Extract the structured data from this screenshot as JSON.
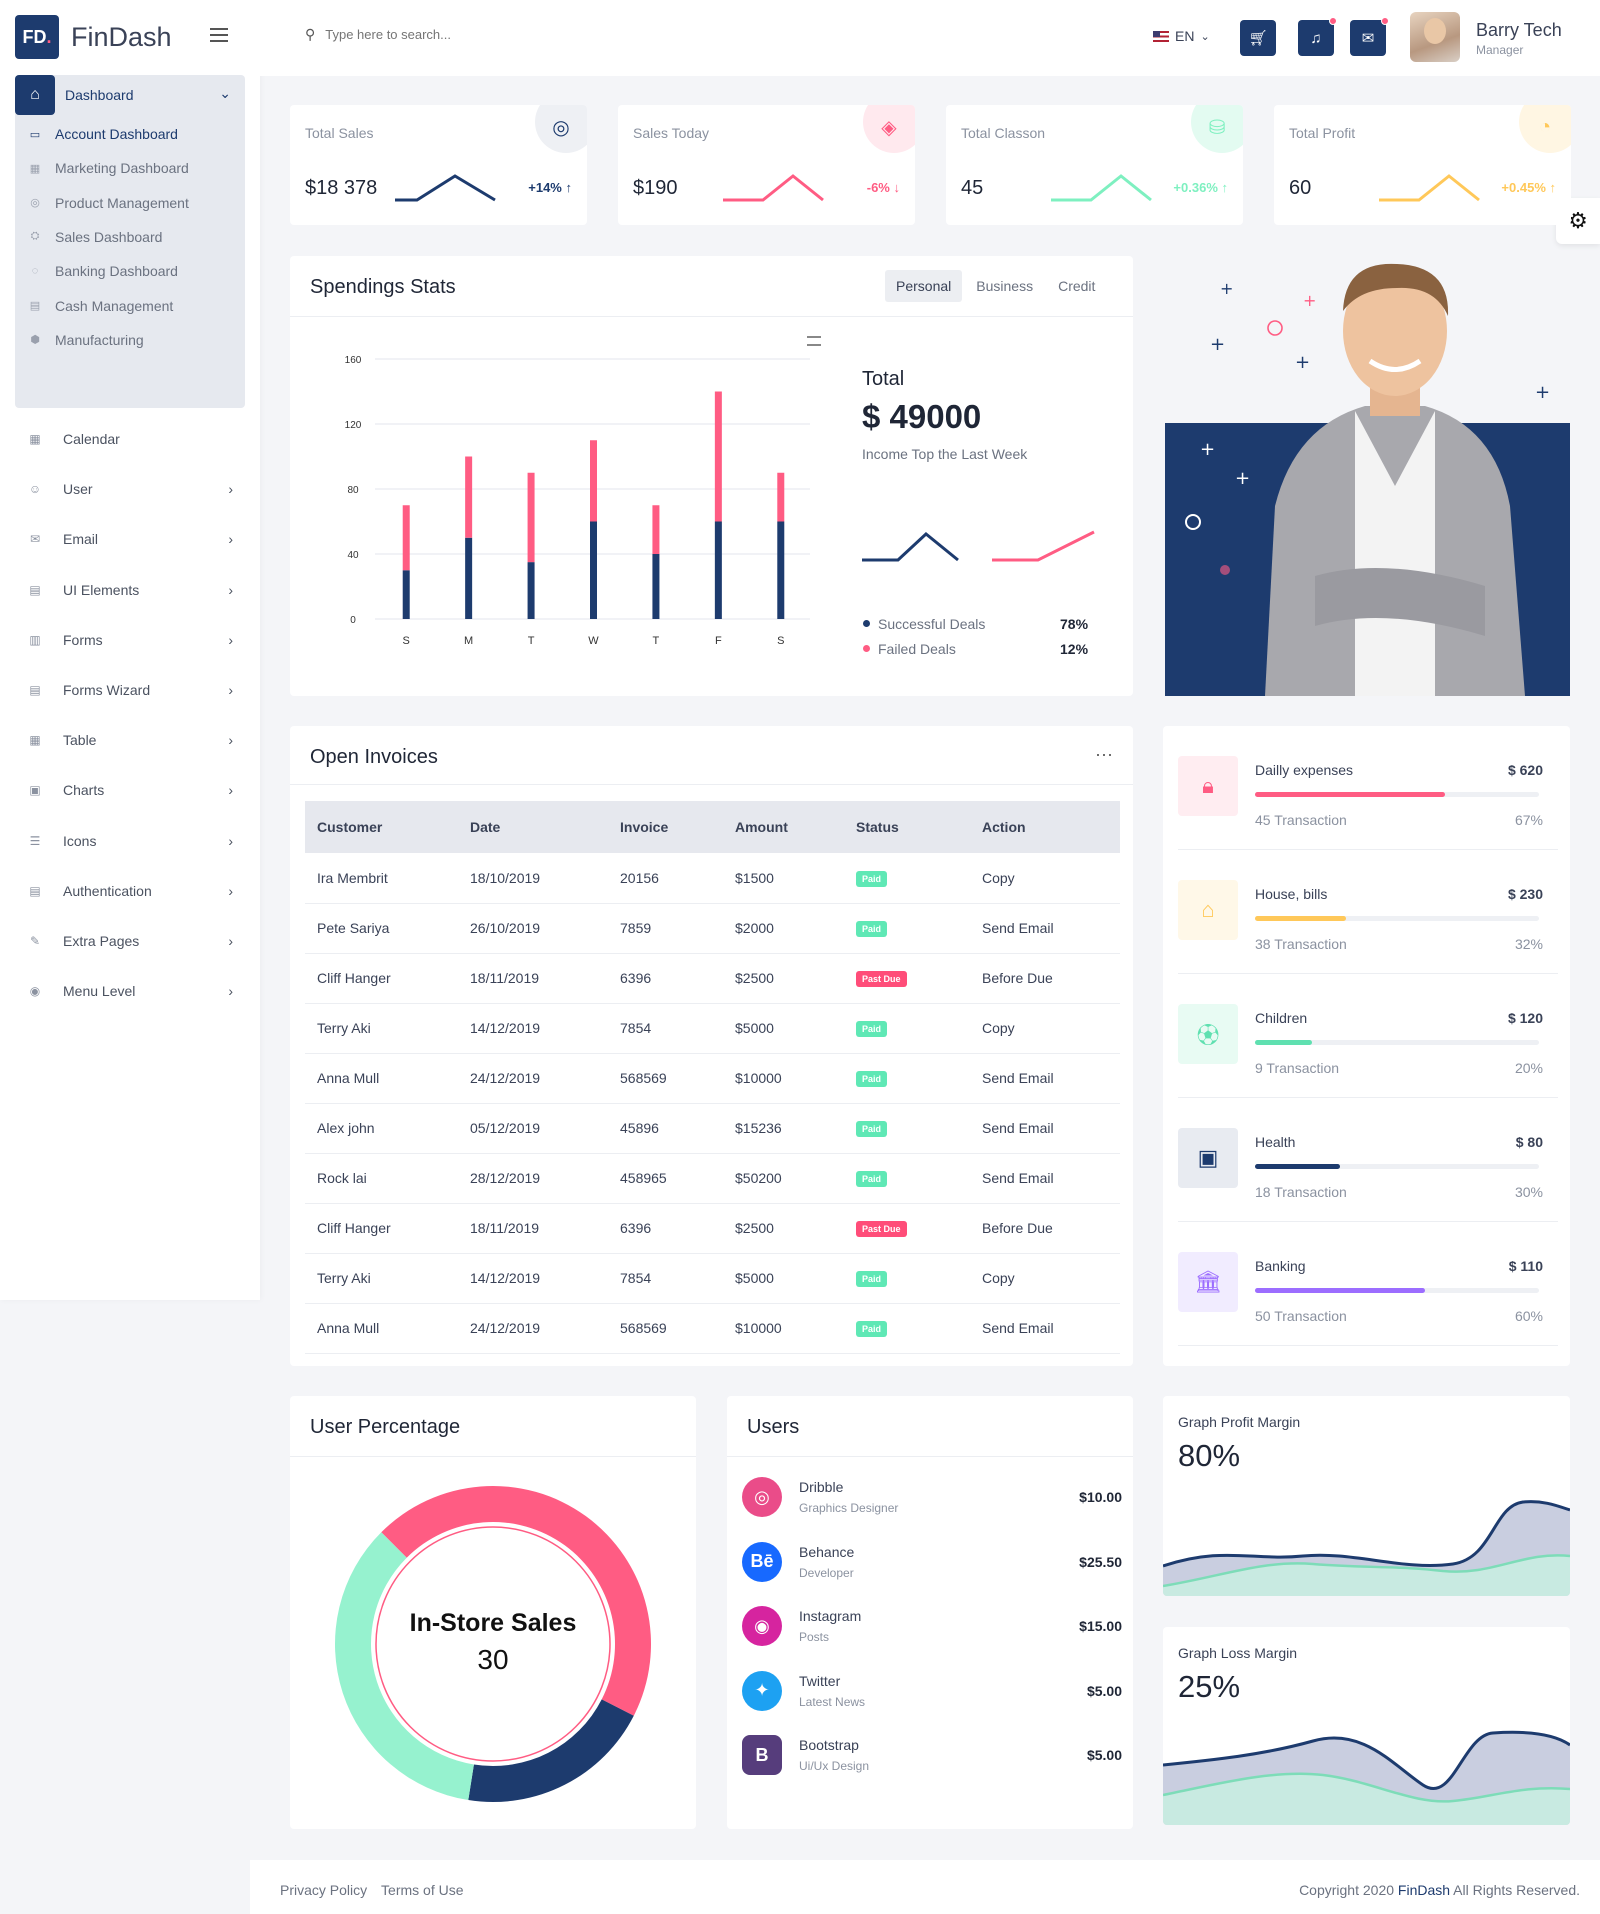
{
  "brand": {
    "logo": "FD",
    "logo_dot": ".",
    "name": "FinDash"
  },
  "sidebar": {
    "dashboard": {
      "label": "Dashboard",
      "icon": "home-icon"
    },
    "sub_items": [
      {
        "label": "Account Dashboard",
        "active": true
      },
      {
        "label": "Marketing Dashboard"
      },
      {
        "label": "Product Management"
      },
      {
        "label": "Sales Dashboard"
      },
      {
        "label": "Banking Dashboard"
      },
      {
        "label": "Cash Management"
      },
      {
        "label": "Manufacturing"
      }
    ],
    "items": [
      {
        "label": "Calendar",
        "chevron": false
      },
      {
        "label": "User",
        "chevron": true
      },
      {
        "label": "Email",
        "chevron": true
      },
      {
        "label": "UI Elements",
        "chevron": true
      },
      {
        "label": "Forms",
        "chevron": true
      },
      {
        "label": "Forms Wizard",
        "chevron": true
      },
      {
        "label": "Table",
        "chevron": true
      },
      {
        "label": "Charts",
        "chevron": true
      },
      {
        "label": "Icons",
        "chevron": true
      },
      {
        "label": "Authentication",
        "chevron": true
      },
      {
        "label": "Extra Pages",
        "chevron": true
      },
      {
        "label": "Menu Level",
        "chevron": true
      }
    ]
  },
  "header": {
    "search_placeholder": "Type here to search...",
    "lang": "EN",
    "user_name": "Barry Tech",
    "user_role": "Manager"
  },
  "stats": [
    {
      "title": "Total Sales",
      "value": "$18 378",
      "change": "+14%",
      "color": "#1d3b6e",
      "icon": "target-icon",
      "bubble": "#eef0f4"
    },
    {
      "title": "Sales Today",
      "value": "$190",
      "change": "-6%",
      "color": "#ff5c83",
      "icon": "tag-icon",
      "bubble": "#ffe9ee"
    },
    {
      "title": "Total Classon",
      "value": "45",
      "change": "+0.36%",
      "color": "#7ef0c0",
      "icon": "database-icon",
      "bubble": "#e3fbf1"
    },
    {
      "title": "Total Profit",
      "value": "60",
      "change": "+0.45%",
      "color": "#ffc859",
      "icon": "pie-icon",
      "bubble": "#fff6e3"
    }
  ],
  "spending": {
    "title": "Spendings Stats",
    "tabs": [
      "Personal",
      "Business",
      "Credit"
    ],
    "total_label": "Total",
    "total_value": "$ 49000",
    "total_sub": "Income Top the Last Week",
    "legend": [
      {
        "label": "Successful Deals",
        "value": "78%",
        "color": "#1d3b6e"
      },
      {
        "label": "Failed Deals",
        "value": "12%",
        "color": "#ff5c83"
      }
    ]
  },
  "chart_data": {
    "type": "bar",
    "categories": [
      "S",
      "M",
      "T",
      "W",
      "T",
      "F",
      "S"
    ],
    "series": [
      {
        "name": "Successful Deals",
        "values": [
          30,
          50,
          35,
          60,
          40,
          60,
          60
        ],
        "color": "#1d3b6e"
      },
      {
        "name": "Failed Deals",
        "values": [
          40,
          50,
          55,
          50,
          30,
          80,
          30
        ],
        "color": "#ff5c83"
      }
    ],
    "yticks": [
      0,
      40,
      80,
      120,
      160
    ],
    "ylim": [
      0,
      160
    ],
    "stacked": true
  },
  "invoices": {
    "title": "Open Invoices",
    "columns": [
      "Customer",
      "Date",
      "Invoice",
      "Amount",
      "Status",
      "Action"
    ],
    "rows": [
      [
        "Ira Membrit",
        "18/10/2019",
        "20156",
        "$1500",
        "Paid",
        "Copy"
      ],
      [
        "Pete Sariya",
        "26/10/2019",
        "7859",
        "$2000",
        "Paid",
        "Send Email"
      ],
      [
        "Cliff Hanger",
        "18/11/2019",
        "6396",
        "$2500",
        "Past Due",
        "Before Due"
      ],
      [
        "Terry Aki",
        "14/12/2019",
        "7854",
        "$5000",
        "Paid",
        "Copy"
      ],
      [
        "Anna Mull",
        "24/12/2019",
        "568569",
        "$10000",
        "Paid",
        "Send Email"
      ],
      [
        "Alex john",
        "05/12/2019",
        "45896",
        "$15236",
        "Paid",
        "Send Email"
      ],
      [
        "Rock lai",
        "28/12/2019",
        "458965",
        "$50200",
        "Paid",
        "Send Email"
      ],
      [
        "Cliff Hanger",
        "18/11/2019",
        "6396",
        "$2500",
        "Past Due",
        "Before Due"
      ],
      [
        "Terry Aki",
        "14/12/2019",
        "7854",
        "$5000",
        "Paid",
        "Copy"
      ],
      [
        "Anna Mull",
        "24/12/2019",
        "568569",
        "$10000",
        "Paid",
        "Send Email"
      ]
    ]
  },
  "expenses": [
    {
      "name": "Dailly expenses",
      "amount": "$ 620",
      "tx": "45 Transaction",
      "pct": "67%",
      "fill": 67,
      "color": "#ff5c83",
      "bg": "#ffedf1",
      "icon": "lock-icon"
    },
    {
      "name": "House, bills",
      "amount": "$ 230",
      "tx": "38 Transaction",
      "pct": "32%",
      "fill": 32,
      "color": "#ffc859",
      "bg": "#fff8e8",
      "icon": "house-icon"
    },
    {
      "name": "Children",
      "amount": "$ 120",
      "tx": "9 Transaction",
      "pct": "20%",
      "fill": 20,
      "color": "#5fe0b0",
      "bg": "#e8fbf3",
      "icon": "ball-icon"
    },
    {
      "name": "Health",
      "amount": "$ 80",
      "tx": "18 Transaction",
      "pct": "30%",
      "fill": 30,
      "color": "#1d3b6e",
      "bg": "#e8ebf1",
      "icon": "hospital-icon"
    },
    {
      "name": "Banking",
      "amount": "$ 110",
      "tx": "50 Transaction",
      "pct": "60%",
      "fill": 60,
      "color": "#9c6dff",
      "bg": "#f1ecff",
      "icon": "bank-icon"
    }
  ],
  "user_percentage": {
    "title": "User Percentage",
    "center_label": "In-Store Sales",
    "center_value": "30",
    "segments": [
      {
        "value": 45,
        "color": "#ff5c83"
      },
      {
        "value": 20,
        "color": "#1d3b6e"
      },
      {
        "value": 35,
        "color": "#96f2cf"
      }
    ]
  },
  "users": {
    "title": "Users",
    "rows": [
      {
        "name": "Dribble",
        "role": "Graphics Designer",
        "value": "$10.00",
        "color": "#ea4c89",
        "glyph": "◎",
        "icon": "dribbble-icon"
      },
      {
        "name": "Behance",
        "role": "Developer",
        "value": "$25.50",
        "color": "#1769ff",
        "glyph": "Bē",
        "icon": "behance-icon"
      },
      {
        "name": "Instagram",
        "role": "Posts",
        "value": "$15.00",
        "color": "#d6249f",
        "glyph": "◉",
        "icon": "instagram-icon"
      },
      {
        "name": "Twitter",
        "role": "Latest News",
        "value": "$5.00",
        "color": "#1da1f2",
        "glyph": "✦",
        "icon": "twitter-icon"
      },
      {
        "name": "Bootstrap",
        "role": "Ui/Ux Design",
        "value": "$5.00",
        "color": "#563d7c",
        "glyph": "B",
        "icon": "bootstrap-icon"
      }
    ]
  },
  "margins": [
    {
      "title": "Graph Profit Margin",
      "value": "80%"
    },
    {
      "title": "Graph Loss Margin",
      "value": "25%"
    }
  ],
  "footer": {
    "privacy": "Privacy Policy",
    "terms": "Terms of Use",
    "copy_pre": "Copyright 2020 ",
    "copy_brand": "FinDash",
    "copy_post": " All Rights Reserved."
  }
}
